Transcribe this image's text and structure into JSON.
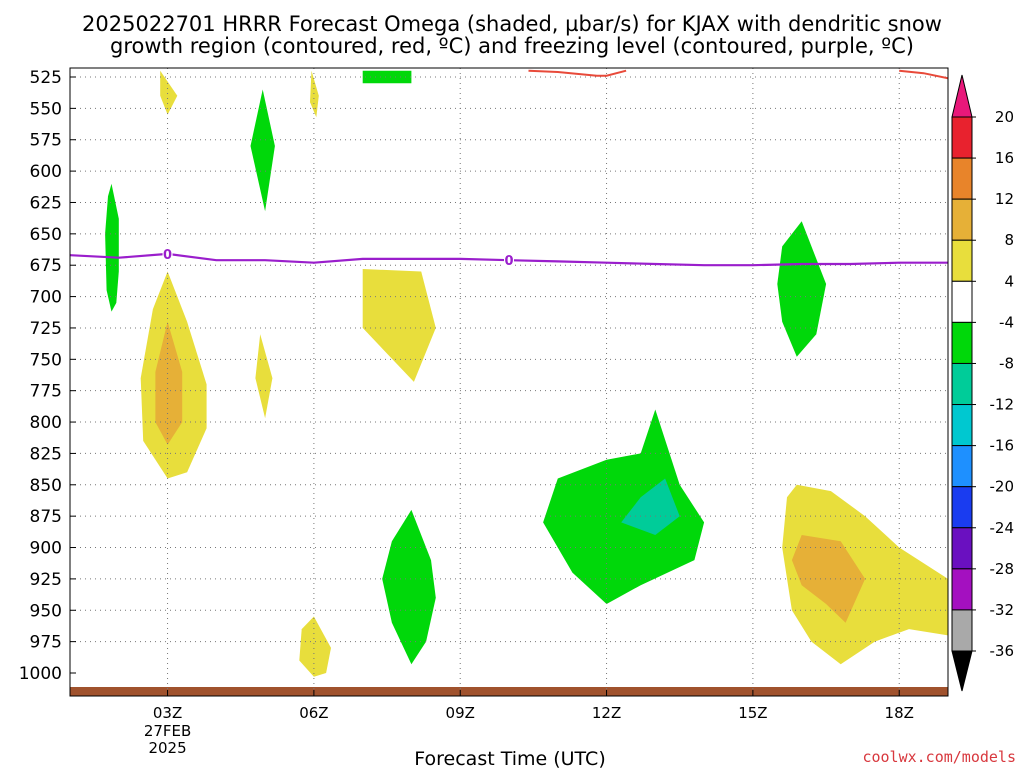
{
  "title_line1": "2025022701 HRRR Forecast Omega (shaded, µbar/s) for KJAX with dendritic snow",
  "title_line2": "growth region (contoured, red, ºC) and freezing level (contoured, purple, ºC)",
  "credit": "coolwx.com/models",
  "chart_data": {
    "type": "heatmap",
    "title": "2025022701 HRRR Forecast Omega (shaded, µbar/s) for KJAX with dendritic snow growth region (contoured, red, ºC) and freezing level (contoured, purple, ºC)",
    "xlabel": "Forecast Time (UTC)",
    "ylabel": "",
    "x_unit": "hours after 00Z 27FEB2025",
    "xlim": [
      1,
      19
    ],
    "ylim": [
      1000,
      520
    ],
    "y_axis": "pressure (mb), inverted",
    "grid": true,
    "x_ticks": [
      {
        "x": 3,
        "label": "03Z",
        "sub1": "27FEB",
        "sub2": "2025"
      },
      {
        "x": 6,
        "label": "06Z",
        "sub1": "",
        "sub2": ""
      },
      {
        "x": 9,
        "label": "09Z",
        "sub1": "",
        "sub2": ""
      },
      {
        "x": 12,
        "label": "12Z",
        "sub1": "",
        "sub2": ""
      },
      {
        "x": 15,
        "label": "15Z",
        "sub1": "",
        "sub2": ""
      },
      {
        "x": 18,
        "label": "18Z",
        "sub1": "",
        "sub2": ""
      }
    ],
    "y_ticks": [
      525,
      550,
      575,
      600,
      625,
      650,
      675,
      700,
      725,
      750,
      775,
      800,
      825,
      850,
      875,
      900,
      925,
      950,
      975,
      1000
    ],
    "colorbar": {
      "labels": [
        "20",
        "16",
        "12",
        "8",
        "4",
        "-4",
        "-8",
        "-12",
        "-16",
        "-20",
        "-24",
        "-28",
        "-32",
        "-36"
      ],
      "colors": [
        "#e8222e",
        "#e8842a",
        "#e6b037",
        "#e8de3c",
        "#ffffff",
        "#00d80a",
        "#00cc99",
        "#00c8d0",
        "#1e90ff",
        "#1a3cf0",
        "#6a10c0",
        "#a410c0",
        "#a9a9a9"
      ],
      "top_arrow_color": "#e8187a",
      "bottom_arrow_color": "#000000"
    },
    "omega_regions": [
      {
        "color": "#00d80a",
        "points": [
          [
            1.85,
            610
          ],
          [
            2.0,
            638
          ],
          [
            2.0,
            680
          ],
          [
            1.95,
            705
          ],
          [
            1.85,
            712
          ],
          [
            1.75,
            695
          ],
          [
            1.72,
            650
          ],
          [
            1.78,
            620
          ]
        ]
      },
      {
        "color": "#e8de3c",
        "points": [
          [
            2.85,
            520
          ],
          [
            3.2,
            540
          ],
          [
            3.0,
            555
          ],
          [
            2.85,
            540
          ]
        ]
      },
      {
        "color": "#e8de3c",
        "points": [
          [
            5.95,
            520
          ],
          [
            6.1,
            540
          ],
          [
            6.05,
            557
          ],
          [
            5.92,
            545
          ]
        ]
      },
      {
        "color": "#00d80a",
        "points": [
          [
            7.0,
            520
          ],
          [
            8.0,
            520
          ],
          [
            8.0,
            530
          ],
          [
            7.0,
            530
          ]
        ]
      },
      {
        "color": "#00d80a",
        "points": [
          [
            4.95,
            535
          ],
          [
            5.2,
            580
          ],
          [
            5.0,
            632
          ],
          [
            4.7,
            580
          ]
        ]
      },
      {
        "color": "#e8de3c",
        "points": [
          [
            3.0,
            680
          ],
          [
            3.4,
            720
          ],
          [
            3.8,
            770
          ],
          [
            3.8,
            805
          ],
          [
            3.4,
            840
          ],
          [
            3.0,
            845
          ],
          [
            2.5,
            815
          ],
          [
            2.45,
            765
          ],
          [
            2.7,
            710
          ]
        ]
      },
      {
        "color": "#e6b037",
        "points": [
          [
            3.0,
            720
          ],
          [
            3.3,
            760
          ],
          [
            3.3,
            800
          ],
          [
            3.0,
            818
          ],
          [
            2.75,
            800
          ],
          [
            2.75,
            760
          ]
        ]
      },
      {
        "color": "#e8de3c",
        "points": [
          [
            4.9,
            730
          ],
          [
            5.15,
            765
          ],
          [
            5.0,
            797
          ],
          [
            4.8,
            765
          ]
        ]
      },
      {
        "color": "#e8de3c",
        "points": [
          [
            7.0,
            678
          ],
          [
            8.2,
            680
          ],
          [
            8.5,
            725
          ],
          [
            8.05,
            768
          ],
          [
            7.0,
            725
          ]
        ]
      },
      {
        "color": "#00d80a",
        "points": [
          [
            8.0,
            870
          ],
          [
            8.4,
            910
          ],
          [
            8.5,
            940
          ],
          [
            8.3,
            975
          ],
          [
            8.0,
            993
          ],
          [
            7.6,
            960
          ],
          [
            7.4,
            925
          ],
          [
            7.6,
            895
          ]
        ]
      },
      {
        "color": "#e8de3c",
        "points": [
          [
            6.0,
            955
          ],
          [
            6.35,
            980
          ],
          [
            6.25,
            1000
          ],
          [
            6.0,
            1003
          ],
          [
            5.7,
            990
          ],
          [
            5.75,
            965
          ]
        ]
      },
      {
        "color": "#00d80a",
        "points": [
          [
            13.0,
            790
          ],
          [
            13.5,
            850
          ],
          [
            14.0,
            880
          ],
          [
            13.8,
            910
          ],
          [
            12.7,
            930
          ],
          [
            12.0,
            945
          ],
          [
            11.3,
            920
          ],
          [
            10.7,
            880
          ],
          [
            11.0,
            845
          ],
          [
            12.0,
            830
          ],
          [
            12.7,
            825
          ]
        ]
      },
      {
        "color": "#00cc99",
        "points": [
          [
            13.2,
            845
          ],
          [
            13.5,
            875
          ],
          [
            13.0,
            890
          ],
          [
            12.3,
            880
          ],
          [
            12.7,
            860
          ]
        ]
      },
      {
        "color": "#00d80a",
        "points": [
          [
            16.0,
            640
          ],
          [
            16.5,
            690
          ],
          [
            16.3,
            730
          ],
          [
            15.9,
            748
          ],
          [
            15.6,
            720
          ],
          [
            15.5,
            690
          ],
          [
            15.6,
            660
          ]
        ]
      },
      {
        "color": "#e8de3c",
        "points": [
          [
            15.9,
            850
          ],
          [
            16.6,
            855
          ],
          [
            17.3,
            875
          ],
          [
            18.0,
            900
          ],
          [
            19.0,
            925
          ],
          [
            19.0,
            970
          ],
          [
            18.2,
            965
          ],
          [
            17.5,
            975
          ],
          [
            16.8,
            993
          ],
          [
            16.2,
            975
          ],
          [
            15.8,
            950
          ],
          [
            15.6,
            900
          ],
          [
            15.7,
            860
          ]
        ]
      },
      {
        "color": "#e6b037",
        "points": [
          [
            16.0,
            890
          ],
          [
            16.8,
            895
          ],
          [
            17.3,
            925
          ],
          [
            16.9,
            960
          ],
          [
            16.5,
            945
          ],
          [
            16.0,
            930
          ],
          [
            15.8,
            910
          ]
        ]
      }
    ],
    "freezing_level": {
      "label": "0",
      "label_x": [
        3.0,
        10.0
      ],
      "x": [
        1,
        2,
        3,
        4,
        5,
        6,
        7,
        8,
        9,
        10,
        11,
        12,
        13,
        14,
        15,
        16,
        17,
        18,
        19
      ],
      "y": [
        667,
        669,
        666,
        671,
        671,
        673,
        670,
        670,
        670,
        671,
        672,
        673,
        674,
        675,
        675,
        674,
        674,
        673,
        673
      ]
    },
    "dendritic_snow_region": {
      "segments": [
        {
          "x": [
            10.4,
            11.0,
            11.8,
            12.0,
            12.4
          ],
          "y": [
            520,
            521,
            524,
            524,
            520
          ]
        },
        {
          "x": [
            18.0,
            18.5,
            19.0
          ],
          "y": [
            520,
            522,
            526
          ]
        }
      ]
    },
    "ground_color": "#a0522d"
  }
}
